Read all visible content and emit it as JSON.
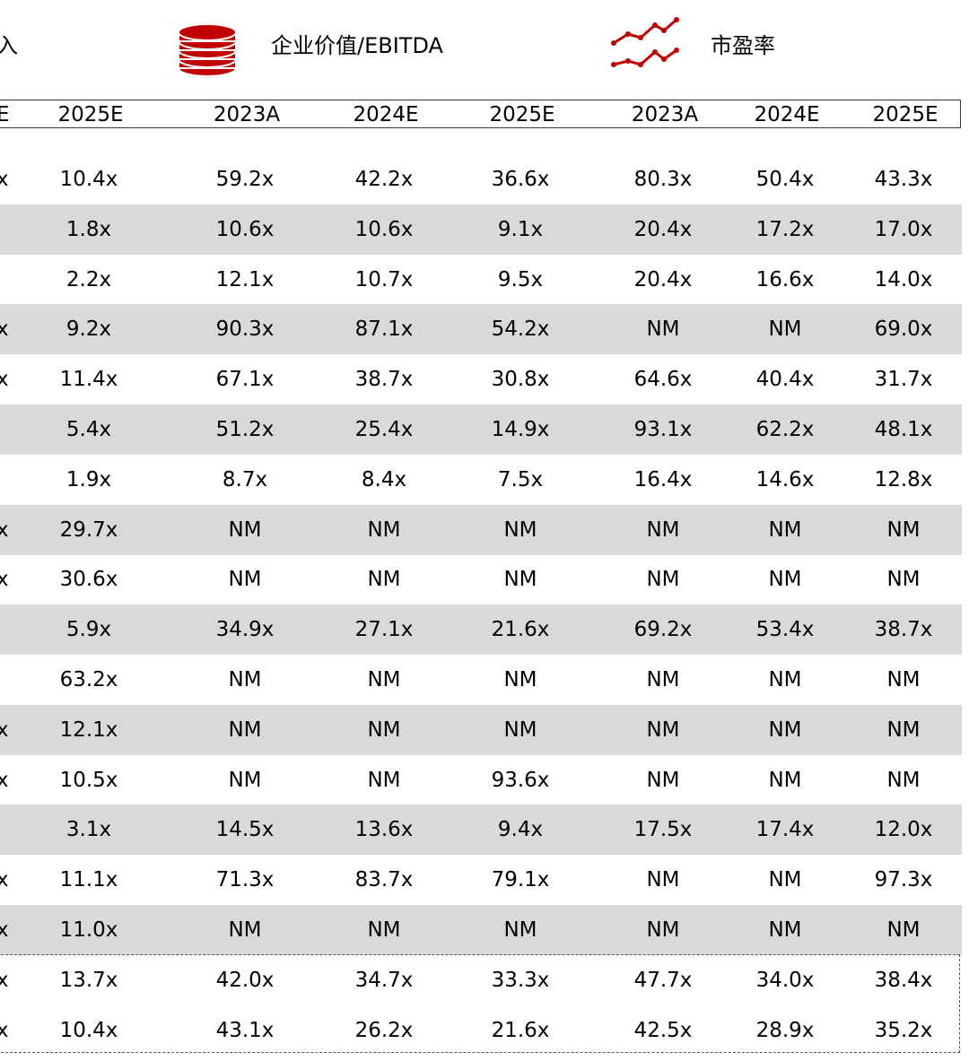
{
  "legend": {
    "item1_label": "入",
    "item2_label": "企业价值/EBITDA",
    "item3_label": "市盈率",
    "icon_color": "#c00000"
  },
  "header": {
    "col0": "E",
    "col1": "2025E",
    "col2": "2023A",
    "col3": "2024E",
    "col4": "2025E",
    "col5": "2023A",
    "col6": "2024E",
    "col7": "2025E"
  },
  "rows": [
    {
      "c0": "x",
      "c1": "10.4x",
      "c2": "59.2x",
      "c3": "42.2x",
      "c4": "36.6x",
      "c5": "80.3x",
      "c6": "50.4x",
      "c7": "43.3x",
      "shaded": false
    },
    {
      "c0": "",
      "c1": "1.8x",
      "c2": "10.6x",
      "c3": "10.6x",
      "c4": "9.1x",
      "c5": "20.4x",
      "c6": "17.2x",
      "c7": "17.0x",
      "shaded": true
    },
    {
      "c0": "",
      "c1": "2.2x",
      "c2": "12.1x",
      "c3": "10.7x",
      "c4": "9.5x",
      "c5": "20.4x",
      "c6": "16.6x",
      "c7": "14.0x",
      "shaded": false
    },
    {
      "c0": "x",
      "c1": "9.2x",
      "c2": "90.3x",
      "c3": "87.1x",
      "c4": "54.2x",
      "c5": "NM",
      "c6": "NM",
      "c7": "69.0x",
      "shaded": true
    },
    {
      "c0": "x",
      "c1": "11.4x",
      "c2": "67.1x",
      "c3": "38.7x",
      "c4": "30.8x",
      "c5": "64.6x",
      "c6": "40.4x",
      "c7": "31.7x",
      "shaded": false
    },
    {
      "c0": "",
      "c1": "5.4x",
      "c2": "51.2x",
      "c3": "25.4x",
      "c4": "14.9x",
      "c5": "93.1x",
      "c6": "62.2x",
      "c7": "48.1x",
      "shaded": true
    },
    {
      "c0": "",
      "c1": "1.9x",
      "c2": "8.7x",
      "c3": "8.4x",
      "c4": "7.5x",
      "c5": "16.4x",
      "c6": "14.6x",
      "c7": "12.8x",
      "shaded": false
    },
    {
      "c0": "x",
      "c1": "29.7x",
      "c2": "NM",
      "c3": "NM",
      "c4": "NM",
      "c5": "NM",
      "c6": "NM",
      "c7": "NM",
      "shaded": true
    },
    {
      "c0": "x",
      "c1": "30.6x",
      "c2": "NM",
      "c3": "NM",
      "c4": "NM",
      "c5": "NM",
      "c6": "NM",
      "c7": "NM",
      "shaded": false
    },
    {
      "c0": "",
      "c1": "5.9x",
      "c2": "34.9x",
      "c3": "27.1x",
      "c4": "21.6x",
      "c5": "69.2x",
      "c6": "53.4x",
      "c7": "38.7x",
      "shaded": true
    },
    {
      "c0": "",
      "c1": "63.2x",
      "c2": "NM",
      "c3": "NM",
      "c4": "NM",
      "c5": "NM",
      "c6": "NM",
      "c7": "NM",
      "shaded": false
    },
    {
      "c0": "x",
      "c1": "12.1x",
      "c2": "NM",
      "c3": "NM",
      "c4": "NM",
      "c5": "NM",
      "c6": "NM",
      "c7": "NM",
      "shaded": true
    },
    {
      "c0": "x",
      "c1": "10.5x",
      "c2": "NM",
      "c3": "NM",
      "c4": "93.6x",
      "c5": "NM",
      "c6": "NM",
      "c7": "NM",
      "shaded": false
    },
    {
      "c0": "",
      "c1": "3.1x",
      "c2": "14.5x",
      "c3": "13.6x",
      "c4": "9.4x",
      "c5": "17.5x",
      "c6": "17.4x",
      "c7": "12.0x",
      "shaded": true
    },
    {
      "c0": "x",
      "c1": "11.1x",
      "c2": "71.3x",
      "c3": "83.7x",
      "c4": "79.1x",
      "c5": "NM",
      "c6": "NM",
      "c7": "97.3x",
      "shaded": false
    },
    {
      "c0": "x",
      "c1": "11.0x",
      "c2": "NM",
      "c3": "NM",
      "c4": "NM",
      "c5": "NM",
      "c6": "NM",
      "c7": "NM",
      "shaded": true
    },
    {
      "c0": "x",
      "c1": "13.7x",
      "c2": "42.0x",
      "c3": "34.7x",
      "c4": "33.3x",
      "c5": "47.7x",
      "c6": "34.0x",
      "c7": "38.4x",
      "shaded": false
    },
    {
      "c0": "x",
      "c1": "10.4x",
      "c2": "43.1x",
      "c3": "26.2x",
      "c4": "21.6x",
      "c5": "42.5x",
      "c6": "28.9x",
      "c7": "35.2x",
      "shaded": false
    }
  ]
}
